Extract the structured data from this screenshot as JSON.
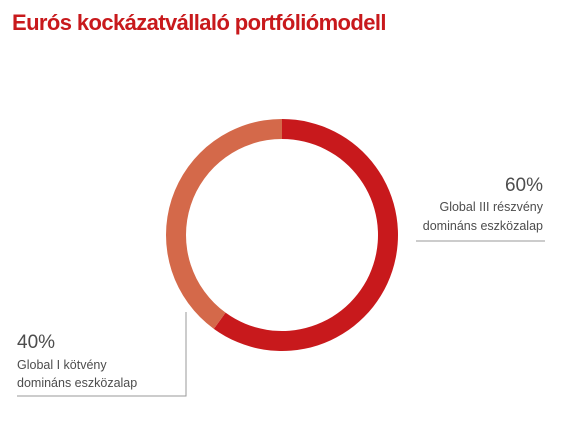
{
  "title": "Eurós kockázatvállaló portfóliómodell",
  "chart_data": {
    "type": "pie",
    "title": "Eurós kockázatvállaló portfóliómodell",
    "slices": [
      {
        "value": 60,
        "label_pct": "60%",
        "label_line1": "Global III részvény",
        "label_line2": "domináns eszközalap",
        "color": "#c8191c"
      },
      {
        "value": 40,
        "label_pct": "40%",
        "label_line1": "Global I kötvény",
        "label_line2": "domináns eszközalap",
        "color": "#d4694a"
      }
    ]
  }
}
